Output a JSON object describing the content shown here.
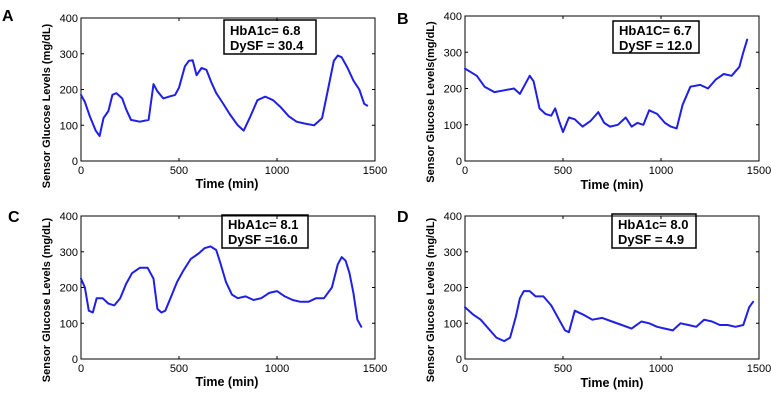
{
  "figure": {
    "background": "#ffffff",
    "line_color": "#1f1fe6"
  },
  "chart_data": [
    {
      "panel": "A",
      "type": "line",
      "xlabel": "Time (min)",
      "ylabel": "Sensor Glucose Levels (mg/dL)",
      "xlim": [
        0,
        1500
      ],
      "ylim": [
        0,
        400
      ],
      "xticks": [
        0,
        500,
        1000,
        1500
      ],
      "yticks": [
        0,
        100,
        200,
        300,
        400
      ],
      "annotation": [
        "HbA1c= 6.8",
        "DySF = 30.4"
      ],
      "series": [
        {
          "x": [
            0,
            20,
            45,
            75,
            95,
            115,
            140,
            160,
            180,
            210,
            230,
            255,
            300,
            345,
            370,
            390,
            420,
            450,
            480,
            500,
            530,
            550,
            570,
            590,
            615,
            640,
            665,
            690,
            720,
            760,
            800,
            830,
            860,
            900,
            940,
            980,
            1020,
            1060,
            1100,
            1140,
            1190,
            1230,
            1260,
            1290,
            1310,
            1330,
            1360,
            1390,
            1420,
            1445,
            1460
          ],
          "y": [
            185,
            165,
            125,
            85,
            70,
            120,
            140,
            185,
            190,
            175,
            145,
            115,
            110,
            115,
            215,
            195,
            175,
            180,
            185,
            205,
            265,
            280,
            282,
            240,
            260,
            255,
            220,
            190,
            165,
            130,
            100,
            85,
            120,
            170,
            180,
            170,
            150,
            125,
            110,
            105,
            100,
            120,
            200,
            280,
            295,
            290,
            260,
            225,
            200,
            160,
            155
          ]
        }
      ]
    },
    {
      "panel": "B",
      "type": "line",
      "xlabel": "Time (min)",
      "ylabel": "Sensor Glucose Levels(mg/dL)",
      "xlim": [
        0,
        1500
      ],
      "ylim": [
        0,
        400
      ],
      "xticks": [
        0,
        500,
        1000,
        1500
      ],
      "yticks": [
        0,
        100,
        200,
        300,
        400
      ],
      "annotation": [
        "HbA1C= 6.7",
        "DySF = 12.0"
      ],
      "series": [
        {
          "x": [
            0,
            30,
            60,
            100,
            150,
            200,
            250,
            280,
            300,
            330,
            350,
            380,
            410,
            440,
            460,
            480,
            500,
            530,
            560,
            600,
            640,
            680,
            710,
            740,
            780,
            820,
            850,
            880,
            910,
            940,
            980,
            1020,
            1050,
            1080,
            1110,
            1150,
            1200,
            1240,
            1280,
            1320,
            1360,
            1400,
            1420,
            1440
          ],
          "y": [
            255,
            245,
            235,
            205,
            190,
            195,
            200,
            185,
            205,
            235,
            220,
            145,
            130,
            125,
            145,
            110,
            80,
            120,
            115,
            95,
            110,
            135,
            105,
            95,
            100,
            120,
            95,
            105,
            100,
            140,
            130,
            105,
            95,
            90,
            155,
            205,
            210,
            200,
            225,
            240,
            235,
            260,
            300,
            335
          ]
        }
      ]
    },
    {
      "panel": "C",
      "type": "line",
      "xlabel": "Time (min)",
      "ylabel": "Sensor Glucose Levels (mg/dL)",
      "xlim": [
        0,
        1500
      ],
      "ylim": [
        0,
        400
      ],
      "xticks": [
        0,
        500,
        1000,
        1500
      ],
      "yticks": [
        0,
        100,
        200,
        300,
        400
      ],
      "annotation": [
        "HbA1c= 8.1",
        "DySF =16.0"
      ],
      "series": [
        {
          "x": [
            0,
            20,
            40,
            60,
            80,
            110,
            140,
            170,
            200,
            230,
            260,
            300,
            340,
            370,
            390,
            410,
            430,
            460,
            490,
            520,
            560,
            600,
            630,
            660,
            690,
            710,
            740,
            770,
            800,
            840,
            880,
            920,
            960,
            1000,
            1040,
            1080,
            1120,
            1160,
            1200,
            1240,
            1280,
            1310,
            1330,
            1350,
            1370,
            1390,
            1410,
            1430
          ],
          "y": [
            225,
            200,
            135,
            130,
            170,
            170,
            155,
            150,
            170,
            210,
            240,
            255,
            255,
            225,
            140,
            130,
            135,
            175,
            215,
            245,
            280,
            295,
            310,
            315,
            305,
            270,
            215,
            180,
            170,
            175,
            165,
            170,
            185,
            190,
            175,
            165,
            160,
            160,
            170,
            170,
            200,
            265,
            285,
            275,
            240,
            185,
            110,
            90
          ]
        }
      ]
    },
    {
      "panel": "D",
      "type": "line",
      "xlabel": "Time (min)",
      "ylabel": "Sensor Glucose Levels (mg/dL)",
      "xlim": [
        0,
        1500
      ],
      "ylim": [
        0,
        400
      ],
      "xticks": [
        0,
        500,
        1000,
        1500
      ],
      "yticks": [
        0,
        100,
        200,
        300,
        400
      ],
      "annotation": [
        "HbA1c= 8.0",
        "DySF = 4.9"
      ],
      "series": [
        {
          "x": [
            0,
            40,
            80,
            120,
            160,
            200,
            230,
            260,
            280,
            300,
            330,
            360,
            400,
            440,
            480,
            510,
            530,
            560,
            600,
            650,
            700,
            750,
            800,
            850,
            900,
            940,
            980,
            1020,
            1060,
            1100,
            1140,
            1180,
            1220,
            1260,
            1300,
            1340,
            1380,
            1420,
            1450,
            1470
          ],
          "y": [
            145,
            125,
            110,
            85,
            60,
            50,
            60,
            120,
            170,
            190,
            190,
            175,
            175,
            150,
            110,
            80,
            75,
            135,
            125,
            110,
            115,
            105,
            95,
            85,
            105,
            100,
            90,
            85,
            80,
            100,
            95,
            90,
            110,
            105,
            95,
            95,
            90,
            95,
            145,
            160
          ]
        }
      ]
    }
  ],
  "panels": [
    {
      "letter": "A",
      "ylabel": "Sensor Glucose Levels (mg/dL)",
      "xlabel": "Time (min)",
      "stat1": "HbA1c= 6.8",
      "stat2": "DySF = 30.4"
    },
    {
      "letter": "B",
      "ylabel": "Sensor Glucose Levels(mg/dL)",
      "xlabel": "Time (min)",
      "stat1": "HbA1C= 6.7",
      "stat2": "DySF = 12.0"
    },
    {
      "letter": "C",
      "ylabel": "Sensor Glucose Levels (mg/dL)",
      "xlabel": "Time (min)",
      "stat1": "HbA1c= 8.1",
      "stat2": "DySF =16.0"
    },
    {
      "letter": "D",
      "ylabel": "Sensor Glucose Levels (mg/dL)",
      "xlabel": "Time (min)",
      "stat1": "HbA1c= 8.0",
      "stat2": "DySF = 4.9"
    }
  ]
}
